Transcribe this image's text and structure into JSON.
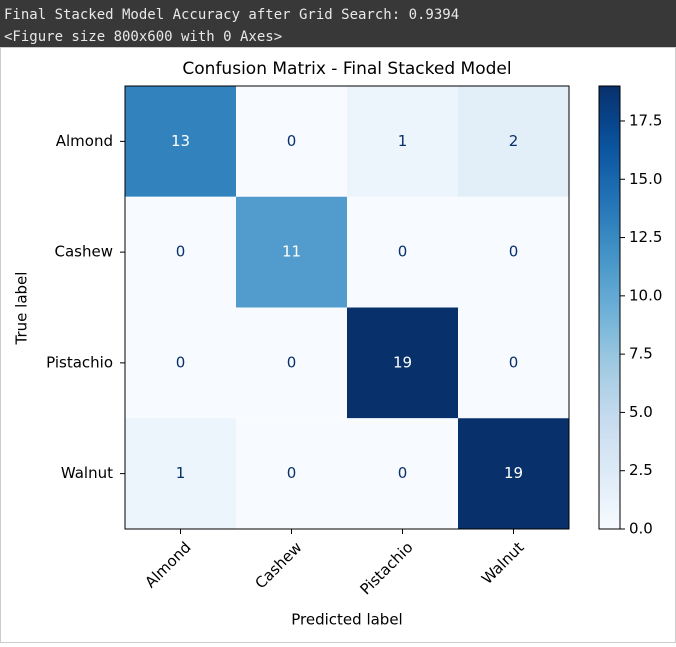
{
  "output": {
    "lines": [
      "Final Stacked Model Accuracy after Grid Search: 0.9394",
      "<Figure size 800x600 with 0 Axes>"
    ]
  },
  "chart_data": {
    "type": "heatmap",
    "title": "Confusion Matrix - Final Stacked Model",
    "x_label": "Predicted label",
    "y_label": "True label",
    "x_categories": [
      "Almond",
      "Cashew",
      "Pistachio",
      "Walnut"
    ],
    "y_categories": [
      "Almond",
      "Cashew",
      "Pistachio",
      "Walnut"
    ],
    "values": [
      [
        13,
        0,
        1,
        2
      ],
      [
        0,
        11,
        0,
        0
      ],
      [
        0,
        0,
        19,
        0
      ],
      [
        1,
        0,
        0,
        19
      ]
    ],
    "colormap": [
      "#f7fbff",
      "#deebf7",
      "#c6dbef",
      "#9ecae1",
      "#6baed6",
      "#4292c6",
      "#2171b5",
      "#08519c",
      "#08306b"
    ],
    "text_colors": [
      "#08306b",
      "#ffffff"
    ],
    "colorbar_lim": [
      0,
      19
    ],
    "colorbar_ticks": [
      {
        "value": 0,
        "label": "0.0"
      },
      2.5,
      {
        "value": 5,
        "label": "5.0"
      },
      7.5,
      {
        "value": 10,
        "label": "10.0"
      },
      12.5,
      {
        "value": 15,
        "label": "15.0"
      },
      17.5
    ]
  }
}
